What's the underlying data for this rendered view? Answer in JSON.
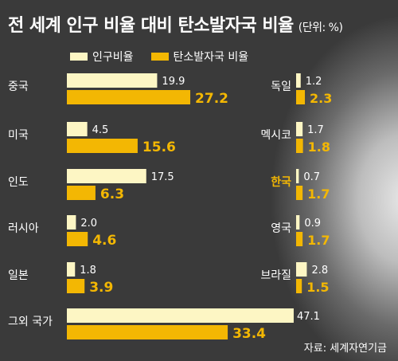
{
  "title": "전 세계 인구 비율 대비 탄소발자국 비율",
  "unit": "(단위: %)",
  "source": "자료: 세계자연기금",
  "colors": {
    "population": "#fdf6c4",
    "footprint": "#f3b703",
    "highlight": "#f3b703",
    "label": "#ffffff"
  },
  "chart_data": {
    "type": "bar",
    "title": "전 세계 인구 비율 대비 탄소발자국 비율",
    "unit": "%",
    "legend": [
      "인구비율",
      "탄소발자국 비율"
    ],
    "series": [
      {
        "name": "인구비율"
      },
      {
        "name": "탄소발자국 비율"
      }
    ],
    "countries": [
      {
        "name": "중국",
        "population": 19.9,
        "footprint": 27.2
      },
      {
        "name": "미국",
        "population": 4.5,
        "footprint": 15.6
      },
      {
        "name": "인도",
        "population": 17.5,
        "footprint": 6.3
      },
      {
        "name": "러시아",
        "population": 2.0,
        "footprint": 4.6
      },
      {
        "name": "일본",
        "population": 1.8,
        "footprint": 3.9
      },
      {
        "name": "그외 국가",
        "population": 47.1,
        "footprint": 33.4
      },
      {
        "name": "독일",
        "population": 1.2,
        "footprint": 2.3
      },
      {
        "name": "멕시코",
        "population": 1.7,
        "footprint": 1.8
      },
      {
        "name": "한국",
        "population": 0.7,
        "footprint": 1.7,
        "highlight": true
      },
      {
        "name": "영국",
        "population": 0.9,
        "footprint": 1.7
      },
      {
        "name": "브라질",
        "population": 2.8,
        "footprint": 1.5
      }
    ],
    "labels": {
      "중국": [
        "19.9",
        "27.2"
      ],
      "미국": [
        "4.5",
        "15.6"
      ],
      "인도": [
        "17.5",
        "6.3"
      ],
      "러시아": [
        "2.0",
        "4.6"
      ],
      "일본": [
        "1.8",
        "3.9"
      ],
      "그외 국가": [
        "47.1",
        "33.4"
      ],
      "독일": [
        "1.2",
        "2.3"
      ],
      "멕시코": [
        "1.7",
        "1.8"
      ],
      "한국": [
        "0.7",
        "1.7"
      ],
      "영국": [
        "0.9",
        "1.7"
      ],
      "브라질": [
        "2.8",
        "1.5"
      ]
    }
  }
}
